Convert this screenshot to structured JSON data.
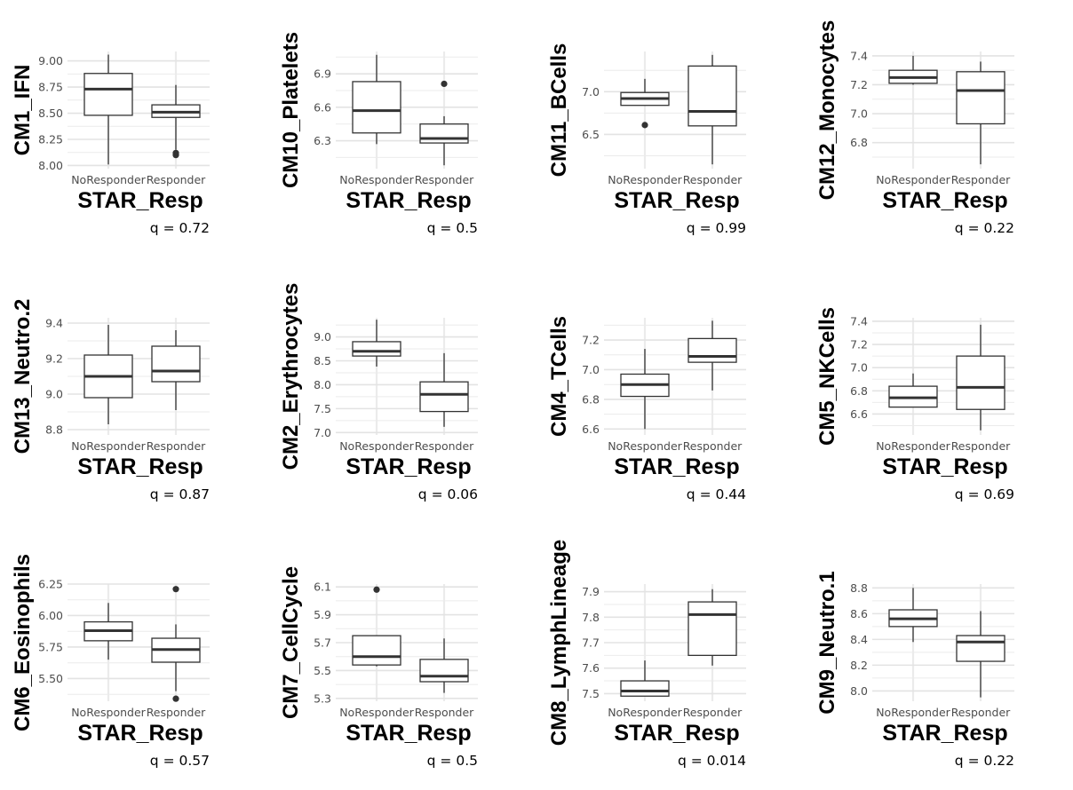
{
  "chart_data": [
    {
      "type": "box",
      "ylabel": "CM1_IFN",
      "xlabel": "STAR_Resp",
      "categories": [
        "NoResponder",
        "Responder"
      ],
      "yticks": [
        8.0,
        8.25,
        8.5,
        8.75,
        9.0
      ],
      "tick_decimals": 2,
      "ylim": [
        7.97,
        9.09
      ],
      "boxes": [
        {
          "whisker_low": 8.01,
          "q1": 8.48,
          "median": 8.73,
          "q3": 8.88,
          "whisker_high": 9.06,
          "outliers": []
        },
        {
          "whisker_low": 8.15,
          "q1": 8.46,
          "median": 8.51,
          "q3": 8.58,
          "whisker_high": 8.77,
          "outliers": [
            8.1,
            8.12
          ]
        }
      ],
      "annotation": "q = 0.72"
    },
    {
      "type": "box",
      "ylabel": "CM10_Platelets",
      "xlabel": "STAR_Resp",
      "categories": [
        "NoResponder",
        "Responder"
      ],
      "yticks": [
        6.3,
        6.6,
        6.9
      ],
      "tick_decimals": 1,
      "ylim": [
        6.05,
        7.1
      ],
      "boxes": [
        {
          "whisker_low": 6.27,
          "q1": 6.37,
          "median": 6.57,
          "q3": 6.83,
          "whisker_high": 7.07,
          "outliers": []
        },
        {
          "whisker_low": 6.08,
          "q1": 6.28,
          "median": 6.32,
          "q3": 6.45,
          "whisker_high": 6.52,
          "outliers": [
            6.81
          ]
        }
      ],
      "annotation": "q = 0.5"
    },
    {
      "type": "box",
      "ylabel": "CM11_BCells",
      "xlabel": "STAR_Resp",
      "categories": [
        "NoResponder",
        "Responder"
      ],
      "yticks": [
        6.5,
        7.0
      ],
      "tick_decimals": 1,
      "ylim": [
        6.1,
        7.47
      ],
      "boxes": [
        {
          "whisker_low": 6.84,
          "q1": 6.84,
          "median": 6.92,
          "q3": 6.99,
          "whisker_high": 7.15,
          "outliers": [
            6.61
          ]
        },
        {
          "whisker_low": 6.15,
          "q1": 6.6,
          "median": 6.77,
          "q3": 7.3,
          "whisker_high": 7.43,
          "outliers": []
        }
      ],
      "annotation": "q = 0.99"
    },
    {
      "type": "box",
      "ylabel": "CM12_Monocytes",
      "xlabel": "STAR_Resp",
      "categories": [
        "NoResponder",
        "Responder"
      ],
      "yticks": [
        6.8,
        7.0,
        7.2,
        7.4
      ],
      "tick_decimals": 1,
      "ylim": [
        6.62,
        7.43
      ],
      "boxes": [
        {
          "whisker_low": 7.2,
          "q1": 7.21,
          "median": 7.25,
          "q3": 7.3,
          "whisker_high": 7.4,
          "outliers": []
        },
        {
          "whisker_low": 6.65,
          "q1": 6.93,
          "median": 7.16,
          "q3": 7.29,
          "whisker_high": 7.36,
          "outliers": []
        }
      ],
      "annotation": "q = 0.22"
    },
    {
      "type": "box",
      "ylabel": "CM13_Neutro.2",
      "xlabel": "STAR_Resp",
      "categories": [
        "NoResponder",
        "Responder"
      ],
      "yticks": [
        8.8,
        9.0,
        9.2,
        9.4
      ],
      "tick_decimals": 1,
      "ylim": [
        8.77,
        9.43
      ],
      "boxes": [
        {
          "whisker_low": 8.83,
          "q1": 8.98,
          "median": 9.1,
          "q3": 9.22,
          "whisker_high": 9.39,
          "outliers": []
        },
        {
          "whisker_low": 8.91,
          "q1": 9.07,
          "median": 9.13,
          "q3": 9.27,
          "whisker_high": 9.36,
          "outliers": []
        }
      ],
      "annotation": "q = 0.87"
    },
    {
      "type": "box",
      "ylabel": "CM2_Erythrocytes",
      "xlabel": "STAR_Resp",
      "categories": [
        "NoResponder",
        "Responder"
      ],
      "yticks": [
        7.0,
        7.5,
        8.0,
        8.5,
        9.0
      ],
      "tick_decimals": 1,
      "ylim": [
        6.95,
        9.4
      ],
      "boxes": [
        {
          "whisker_low": 8.38,
          "q1": 8.6,
          "median": 8.7,
          "q3": 8.9,
          "whisker_high": 9.36,
          "outliers": []
        },
        {
          "whisker_low": 7.12,
          "q1": 7.44,
          "median": 7.8,
          "q3": 8.06,
          "whisker_high": 8.66,
          "outliers": []
        }
      ],
      "annotation": "q = 0.06"
    },
    {
      "type": "box",
      "ylabel": "CM4_TCells",
      "xlabel": "STAR_Resp",
      "categories": [
        "NoResponder",
        "Responder"
      ],
      "yticks": [
        6.6,
        6.8,
        7.0,
        7.2
      ],
      "tick_decimals": 1,
      "ylim": [
        6.56,
        7.35
      ],
      "boxes": [
        {
          "whisker_low": 6.6,
          "q1": 6.82,
          "median": 6.9,
          "q3": 6.97,
          "whisker_high": 7.14,
          "outliers": []
        },
        {
          "whisker_low": 6.86,
          "q1": 7.05,
          "median": 7.09,
          "q3": 7.21,
          "whisker_high": 7.33,
          "outliers": []
        }
      ],
      "annotation": "q = 0.44"
    },
    {
      "type": "box",
      "ylabel": "CM5_NKCells",
      "xlabel": "STAR_Resp",
      "categories": [
        "NoResponder",
        "Responder"
      ],
      "yticks": [
        6.6,
        6.8,
        7.0,
        7.2,
        7.4
      ],
      "tick_decimals": 1,
      "ylim": [
        6.42,
        7.43
      ],
      "boxes": [
        {
          "whisker_low": 6.66,
          "q1": 6.66,
          "median": 6.74,
          "q3": 6.84,
          "whisker_high": 6.95,
          "outliers": []
        },
        {
          "whisker_low": 6.46,
          "q1": 6.64,
          "median": 6.83,
          "q3": 7.1,
          "whisker_high": 7.37,
          "outliers": []
        }
      ],
      "annotation": "q = 0.69"
    },
    {
      "type": "box",
      "ylabel": "CM6_Eosinophils",
      "xlabel": "STAR_Resp",
      "categories": [
        "NoResponder",
        "Responder"
      ],
      "yticks": [
        5.5,
        5.75,
        6.0,
        6.25
      ],
      "tick_decimals": 2,
      "ylim": [
        5.32,
        6.25
      ],
      "boxes": [
        {
          "whisker_low": 5.65,
          "q1": 5.8,
          "median": 5.88,
          "q3": 5.95,
          "whisker_high": 6.1,
          "outliers": []
        },
        {
          "whisker_low": 5.4,
          "q1": 5.63,
          "median": 5.73,
          "q3": 5.82,
          "whisker_high": 5.93,
          "outliers": [
            6.21,
            5.34
          ]
        }
      ],
      "annotation": "q = 0.57"
    },
    {
      "type": "box",
      "ylabel": "CM7_CellCycle",
      "xlabel": "STAR_Resp",
      "categories": [
        "NoResponder",
        "Responder"
      ],
      "yticks": [
        5.3,
        5.5,
        5.7,
        5.9,
        6.1
      ],
      "tick_decimals": 1,
      "ylim": [
        5.28,
        6.12
      ],
      "boxes": [
        {
          "whisker_low": 5.53,
          "q1": 5.54,
          "median": 5.6,
          "q3": 5.75,
          "whisker_high": 5.75,
          "outliers": [
            6.08
          ]
        },
        {
          "whisker_low": 5.34,
          "q1": 5.42,
          "median": 5.46,
          "q3": 5.58,
          "whisker_high": 5.73,
          "outliers": []
        }
      ],
      "annotation": "q = 0.5"
    },
    {
      "type": "box",
      "ylabel": "CM8_LymphLineage",
      "xlabel": "STAR_Resp",
      "categories": [
        "NoResponder",
        "Responder"
      ],
      "yticks": [
        7.5,
        7.6,
        7.7,
        7.8,
        7.9
      ],
      "tick_decimals": 1,
      "ylim": [
        7.47,
        7.93
      ],
      "boxes": [
        {
          "whisker_low": 7.49,
          "q1": 7.49,
          "median": 7.51,
          "q3": 7.55,
          "whisker_high": 7.63,
          "outliers": []
        },
        {
          "whisker_low": 7.61,
          "q1": 7.65,
          "median": 7.81,
          "q3": 7.86,
          "whisker_high": 7.91,
          "outliers": []
        }
      ],
      "annotation": "q = 0.014"
    },
    {
      "type": "box",
      "ylabel": "CM9_Neutro.1",
      "xlabel": "STAR_Resp",
      "categories": [
        "NoResponder",
        "Responder"
      ],
      "yticks": [
        8.0,
        8.2,
        8.4,
        8.6,
        8.8
      ],
      "tick_decimals": 1,
      "ylim": [
        7.92,
        8.83
      ],
      "boxes": [
        {
          "whisker_low": 8.38,
          "q1": 8.5,
          "median": 8.56,
          "q3": 8.63,
          "whisker_high": 8.8,
          "outliers": []
        },
        {
          "whisker_low": 7.95,
          "q1": 8.23,
          "median": 8.38,
          "q3": 8.43,
          "whisker_high": 8.62,
          "outliers": []
        }
      ],
      "annotation": "q = 0.22"
    }
  ]
}
